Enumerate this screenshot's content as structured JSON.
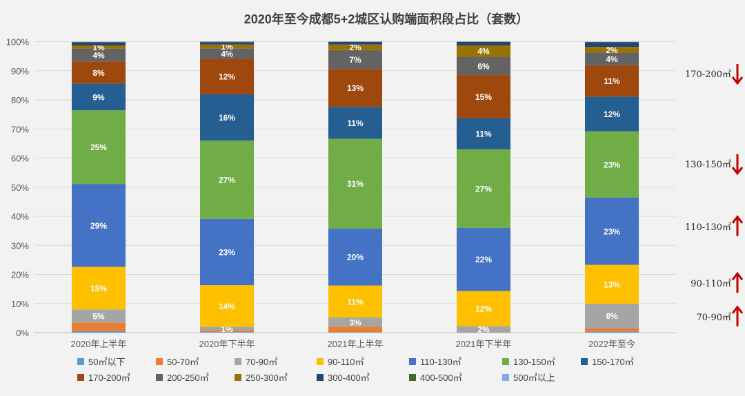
{
  "chart_data": {
    "type": "bar",
    "stacked": true,
    "title": "2020年至今成都5+2城区认购端面积段占比（套数）",
    "categories": [
      "2020年上半年",
      "2020年下半年",
      "2021年上半年",
      "2021年下半年",
      "2022年至今"
    ],
    "yticks": [
      "0%",
      "10%",
      "20%",
      "30%",
      "40%",
      "50%",
      "60%",
      "70%",
      "80%",
      "90%",
      "100%"
    ],
    "ylim": [
      0,
      100
    ],
    "series": [
      {
        "name": "50㎡以下",
        "color": "#5b9bd5",
        "values": [
          0.5,
          0.2,
          0.2,
          0.1,
          0.4
        ]
      },
      {
        "name": "50-70㎡",
        "color": "#ed7d31",
        "values": [
          2.9,
          0.5,
          1.8,
          0.1,
          1.2
        ]
      },
      {
        "name": "70-90㎡",
        "color": "#a5a5a5",
        "values": [
          4.6,
          1.3,
          3.2,
          2.0,
          8.3
        ]
      },
      {
        "name": "90-110㎡",
        "color": "#ffc000",
        "values": [
          14.6,
          14.3,
          11.0,
          12.1,
          13.4
        ]
      },
      {
        "name": "110-130㎡",
        "color": "#4472c4",
        "values": [
          28.5,
          22.8,
          19.6,
          21.7,
          23.1
        ]
      },
      {
        "name": "130-150㎡",
        "color": "#70ad47",
        "values": [
          25.3,
          26.9,
          30.8,
          27.0,
          22.8
        ]
      },
      {
        "name": "150-170㎡",
        "color": "#255e91",
        "values": [
          9.2,
          15.9,
          11.0,
          10.7,
          11.9
        ]
      },
      {
        "name": "170-200㎡",
        "color": "#9e480e",
        "values": [
          7.6,
          12.2,
          13.0,
          14.8,
          10.8
        ]
      },
      {
        "name": "200-250㎡",
        "color": "#636363",
        "values": [
          4.4,
          3.6,
          6.5,
          6.3,
          4.3
        ]
      },
      {
        "name": "250-300㎡",
        "color": "#997300",
        "values": [
          1.1,
          1.3,
          1.9,
          3.9,
          2.0
        ]
      },
      {
        "name": "300-400㎡",
        "color": "#264478",
        "values": [
          1.0,
          0.8,
          0.9,
          1.2,
          1.6
        ]
      },
      {
        "name": "400-500㎡",
        "color": "#43682b",
        "values": [
          0.2,
          0.2,
          0.1,
          0.1,
          0.1
        ]
      },
      {
        "name": "500㎡以上",
        "color": "#7cafdd",
        "values": [
          0.1,
          0.0,
          0.0,
          0.0,
          0.1
        ]
      }
    ],
    "data_labels": [
      [
        "",
        "",
        "5%",
        "15%",
        "29%",
        "25%",
        "9%",
        "8%",
        "4%",
        "1%",
        "",
        "",
        ""
      ],
      [
        "",
        "",
        "1%",
        "14%",
        "23%",
        "27%",
        "16%",
        "12%",
        "4%",
        "1%",
        "",
        "",
        ""
      ],
      [
        "",
        "",
        "3%",
        "11%",
        "20%",
        "31%",
        "11%",
        "13%",
        "7%",
        "2%",
        "",
        "",
        ""
      ],
      [
        "",
        "",
        "2%",
        "12%",
        "22%",
        "27%",
        "11%",
        "15%",
        "6%",
        "4%",
        "",
        "",
        ""
      ],
      [
        "",
        "",
        "8%",
        "13%",
        "23%",
        "23%",
        "12%",
        "11%",
        "4%",
        "2%",
        "",
        "",
        ""
      ]
    ],
    "legend": [
      [
        "50㎡以下",
        "50-70㎡",
        "70-90㎡",
        "90-110㎡",
        "110-130㎡",
        "130-150㎡",
        "150-170㎡"
      ],
      [
        "170-200㎡",
        "200-250㎡",
        "250-300㎡",
        "300-400㎡",
        "400-500㎡",
        "500㎡以上"
      ]
    ],
    "annotations": [
      {
        "label": "170-200㎡",
        "direction": "down",
        "value": 89
      },
      {
        "label": "130-150㎡",
        "direction": "down",
        "value": 58
      },
      {
        "label": "110-130㎡",
        "direction": "up",
        "value": 36.5
      },
      {
        "label": "90-110㎡",
        "direction": "up",
        "value": 17
      },
      {
        "label": "70-90㎡",
        "direction": "up",
        "value": 5.5
      }
    ],
    "annotation_arrow_color": "#c00000",
    "grid": true
  }
}
